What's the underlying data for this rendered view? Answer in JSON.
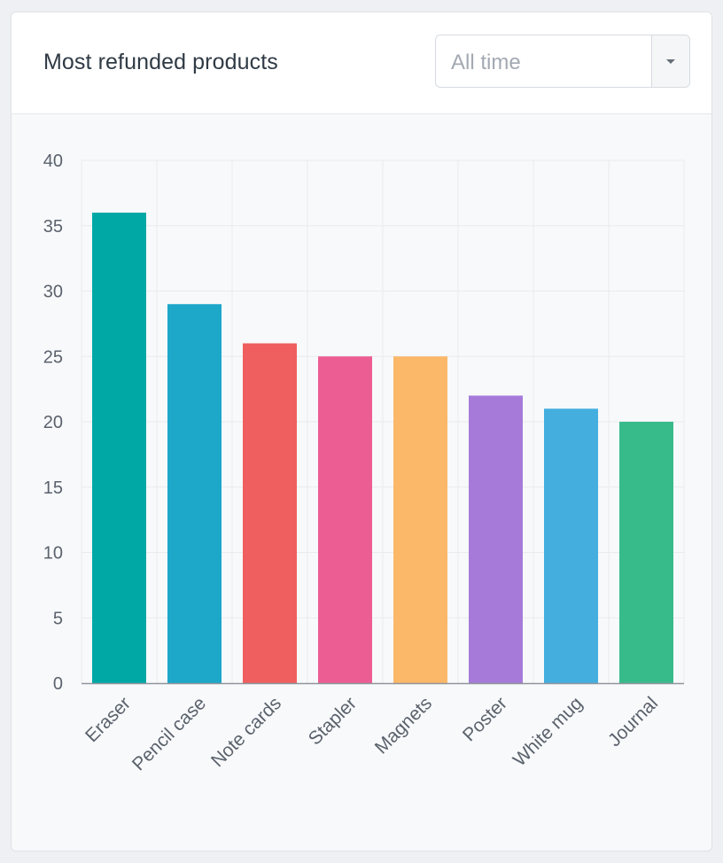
{
  "header": {
    "title": "Most refunded products",
    "period_select": {
      "value": "All time",
      "icon": "chevron-down-icon"
    }
  },
  "chart_data": {
    "type": "bar",
    "categories": [
      "Eraser",
      "Pencil case",
      "Note cards",
      "Stapler",
      "Magnets",
      "Poster",
      "White mug",
      "Journal"
    ],
    "values": [
      36,
      29,
      26,
      25,
      25,
      22,
      21,
      20
    ],
    "colors": [
      "#00a8a5",
      "#1da7c9",
      "#ef5f5f",
      "#ec5d94",
      "#fbb868",
      "#a67ad9",
      "#44aedf",
      "#38bb8b"
    ],
    "title": "",
    "xlabel": "",
    "ylabel": "",
    "ylim": [
      0,
      40
    ],
    "yticks": [
      0,
      5,
      10,
      15,
      20,
      25,
      30,
      35,
      40
    ],
    "grid": true,
    "legend": "none"
  }
}
